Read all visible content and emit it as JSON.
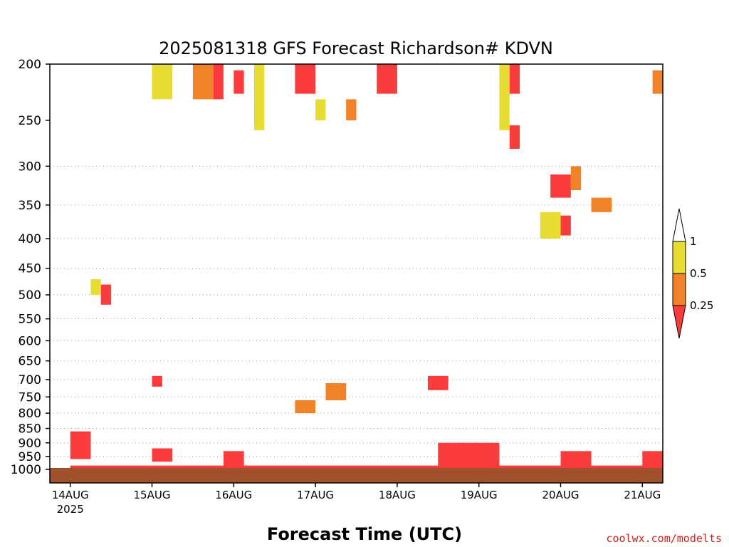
{
  "chart_data": {
    "type": "heatmap",
    "title": "2025081318 GFS Forecast Richardson# KDVN",
    "xlabel": "Forecast Time (UTC)",
    "ylabel": "",
    "y_scale": "log",
    "y_inverted": true,
    "ylim": [
      1020,
      200
    ],
    "y_ticks": [
      200,
      250,
      300,
      350,
      400,
      450,
      500,
      550,
      600,
      650,
      700,
      750,
      800,
      850,
      900,
      950,
      1000
    ],
    "xlim": [
      "2025-08-13T18:00Z",
      "2025-08-21T06:00Z"
    ],
    "x_ticks": [
      {
        "time": "2025-08-14T00:00Z",
        "label": "14AUG",
        "sublabel": "2025"
      },
      {
        "time": "2025-08-15T00:00Z",
        "label": "15AUG",
        "sublabel": ""
      },
      {
        "time": "2025-08-16T00:00Z",
        "label": "16AUG",
        "sublabel": ""
      },
      {
        "time": "2025-08-17T00:00Z",
        "label": "17AUG",
        "sublabel": ""
      },
      {
        "time": "2025-08-18T00:00Z",
        "label": "18AUG",
        "sublabel": ""
      },
      {
        "time": "2025-08-19T00:00Z",
        "label": "19AUG",
        "sublabel": ""
      },
      {
        "time": "2025-08-20T00:00Z",
        "label": "20AUG",
        "sublabel": ""
      },
      {
        "time": "2025-08-21T00:00Z",
        "label": "21AUG",
        "sublabel": ""
      }
    ],
    "grid_levels": [
      300,
      350,
      400,
      450,
      500,
      550,
      600,
      650,
      700,
      750,
      800,
      850,
      900,
      950,
      1000
    ],
    "legend": {
      "placement": "right",
      "labels": [
        "1",
        "0.5",
        "0.25"
      ],
      "colors": {
        "0.5-1": "#e6dc32",
        "0.25-0.5": "#f08228",
        "below-0.25": "#fa3c3c"
      }
    },
    "colors": {
      "below_ground": "#a0522d",
      "grid": "#9a9a9a"
    },
    "regions": [
      {
        "t0": "2025-08-15T00:00Z",
        "t1": "2025-08-15T06:00Z",
        "p0": 200,
        "p1": 230,
        "class": "0.5-1"
      },
      {
        "t0": "2025-08-15T12:00Z",
        "t1": "2025-08-15T18:00Z",
        "p0": 200,
        "p1": 230,
        "class": "0.25-0.5"
      },
      {
        "t0": "2025-08-15T18:00Z",
        "t1": "2025-08-15T21:00Z",
        "p0": 200,
        "p1": 230,
        "class": "below-0.25"
      },
      {
        "t0": "2025-08-16T00:00Z",
        "t1": "2025-08-16T03:00Z",
        "p0": 205,
        "p1": 225,
        "class": "below-0.25"
      },
      {
        "t0": "2025-08-16T06:00Z",
        "t1": "2025-08-16T09:00Z",
        "p0": 200,
        "p1": 260,
        "class": "0.5-1"
      },
      {
        "t0": "2025-08-16T18:00Z",
        "t1": "2025-08-17T00:00Z",
        "p0": 200,
        "p1": 225,
        "class": "below-0.25"
      },
      {
        "t0": "2025-08-17T00:00Z",
        "t1": "2025-08-17T03:00Z",
        "p0": 230,
        "p1": 250,
        "class": "0.5-1"
      },
      {
        "t0": "2025-08-17T09:00Z",
        "t1": "2025-08-17T12:00Z",
        "p0": 230,
        "p1": 250,
        "class": "0.25-0.5"
      },
      {
        "t0": "2025-08-17T18:00Z",
        "t1": "2025-08-18T00:00Z",
        "p0": 200,
        "p1": 225,
        "class": "below-0.25"
      },
      {
        "t0": "2025-08-19T06:00Z",
        "t1": "2025-08-19T09:00Z",
        "p0": 200,
        "p1": 260,
        "class": "0.5-1"
      },
      {
        "t0": "2025-08-19T09:00Z",
        "t1": "2025-08-19T12:00Z",
        "p0": 200,
        "p1": 225,
        "class": "below-0.25"
      },
      {
        "t0": "2025-08-19T09:00Z",
        "t1": "2025-08-19T12:00Z",
        "p0": 255,
        "p1": 280,
        "class": "below-0.25"
      },
      {
        "t0": "2025-08-21T03:00Z",
        "t1": "2025-08-21T06:00Z",
        "p0": 205,
        "p1": 225,
        "class": "0.25-0.5"
      },
      {
        "t0": "2025-08-14T09:00Z",
        "t1": "2025-08-14T12:00Z",
        "p0": 480,
        "p1": 520,
        "class": "below-0.25"
      },
      {
        "t0": "2025-08-14T06:00Z",
        "t1": "2025-08-14T09:00Z",
        "p0": 470,
        "p1": 500,
        "class": "0.5-1"
      },
      {
        "t0": "2025-08-15T00:00Z",
        "t1": "2025-08-15T03:00Z",
        "p0": 690,
        "p1": 720,
        "class": "below-0.25"
      },
      {
        "t0": "2025-08-16T18:00Z",
        "t1": "2025-08-17T00:00Z",
        "p0": 760,
        "p1": 800,
        "class": "0.25-0.5"
      },
      {
        "t0": "2025-08-17T03:00Z",
        "t1": "2025-08-17T09:00Z",
        "p0": 710,
        "p1": 760,
        "class": "0.25-0.5"
      },
      {
        "t0": "2025-08-18T09:00Z",
        "t1": "2025-08-18T15:00Z",
        "p0": 690,
        "p1": 730,
        "class": "below-0.25"
      },
      {
        "t0": "2025-08-19T21:00Z",
        "t1": "2025-08-20T03:00Z",
        "p0": 310,
        "p1": 340,
        "class": "below-0.25"
      },
      {
        "t0": "2025-08-20T03:00Z",
        "t1": "2025-08-20T06:00Z",
        "p0": 300,
        "p1": 330,
        "class": "0.25-0.5"
      },
      {
        "t0": "2025-08-19T18:00Z",
        "t1": "2025-08-20T00:00Z",
        "p0": 360,
        "p1": 400,
        "class": "0.5-1"
      },
      {
        "t0": "2025-08-20T00:00Z",
        "t1": "2025-08-20T03:00Z",
        "p0": 365,
        "p1": 395,
        "class": "below-0.25"
      },
      {
        "t0": "2025-08-20T09:00Z",
        "t1": "2025-08-20T15:00Z",
        "p0": 340,
        "p1": 360,
        "class": "0.25-0.5"
      },
      {
        "t0": "2025-08-14T00:00Z",
        "t1": "2025-08-14T06:00Z",
        "p0": 860,
        "p1": 960,
        "class": "below-0.25"
      },
      {
        "t0": "2025-08-15T00:00Z",
        "t1": "2025-08-15T06:00Z",
        "p0": 920,
        "p1": 970,
        "class": "below-0.25"
      },
      {
        "t0": "2025-08-15T21:00Z",
        "t1": "2025-08-16T03:00Z",
        "p0": 930,
        "p1": 990,
        "class": "below-0.25"
      },
      {
        "t0": "2025-08-18T12:00Z",
        "t1": "2025-08-19T06:00Z",
        "p0": 900,
        "p1": 990,
        "class": "below-0.25"
      },
      {
        "t0": "2025-08-20T00:00Z",
        "t1": "2025-08-20T09:00Z",
        "p0": 930,
        "p1": 990,
        "class": "below-0.25"
      },
      {
        "t0": "2025-08-21T00:00Z",
        "t1": "2025-08-21T06:00Z",
        "p0": 930,
        "p1": 990,
        "class": "below-0.25"
      },
      {
        "t0": "2025-08-14T00:00Z",
        "t1": "2025-08-21T06:00Z",
        "p0": 985,
        "p1": 1000,
        "class": "below-0.25"
      }
    ]
  },
  "credit": "coolwx.com/modelts"
}
